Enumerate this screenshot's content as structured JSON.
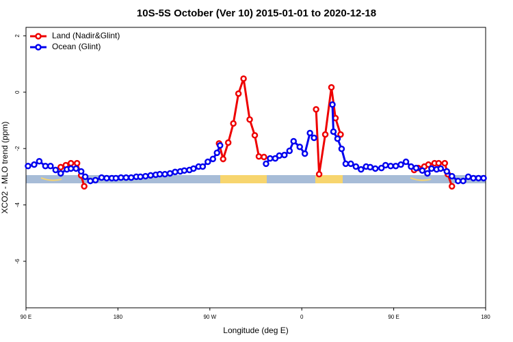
{
  "chart_data": {
    "type": "line",
    "title": "10S-5S October (Ver 10)   2015-01-01 to 2020-12-18",
    "x_label": "Longitude (deg E)",
    "y_label": "XCO2 - MLO trend (ppm)",
    "xlim": [
      90,
      540
    ],
    "ylim": [
      -7.65,
      2.3
    ],
    "xticks": [
      {
        "value": 90,
        "label": "90 E"
      },
      180,
      {
        "value": 270,
        "label": "90 W"
      },
      {
        "value": 360,
        "label": "0"
      },
      {
        "value": 450,
        "label": "90 E"
      },
      {
        "value": 540,
        "label": "180"
      }
    ],
    "yticks": [
      -6,
      -4,
      -2,
      0,
      2
    ],
    "legend": "top-left",
    "series": [
      {
        "name": "Land (Nadir&Glint)",
        "color": "#ee0000",
        "x": [
          124,
          129,
          134,
          140,
          144,
          147,
          200,
          279,
          283,
          288,
          293,
          298,
          303,
          309,
          314,
          318,
          323,
          340,
          374,
          377,
          383,
          389,
          393,
          398,
          450,
          470,
          474,
          480,
          484,
          490,
          494,
          500,
          503,
          507
        ],
        "values": [
          -2.66,
          -2.59,
          -2.52,
          -2.52,
          -2.95,
          -3.34,
          null,
          -1.82,
          -2.37,
          -1.79,
          -1.11,
          -0.05,
          0.48,
          -0.97,
          -1.53,
          -2.28,
          -2.3,
          null,
          -0.61,
          -2.91,
          -1.5,
          0.17,
          -0.92,
          -1.5,
          null,
          -2.76,
          -2.69,
          -2.64,
          -2.57,
          -2.52,
          -2.52,
          -2.52,
          -2.91,
          -3.34
        ]
      },
      {
        "name": "Ocean (Glint)",
        "color": "#0000ee",
        "x": [
          92,
          98,
          103,
          109,
          114,
          119,
          124,
          130,
          134,
          139,
          144,
          148,
          153,
          158,
          164,
          169,
          174,
          178,
          183,
          188,
          193,
          198,
          202,
          207,
          212,
          217,
          221,
          226,
          231,
          236,
          241,
          245,
          250,
          254,
          259,
          263,
          268,
          273,
          277,
          280,
          310,
          325,
          329,
          334,
          338,
          343,
          348,
          352,
          358,
          363,
          368,
          372,
          376,
          390,
          391,
          395,
          399,
          403,
          408,
          413,
          418,
          423,
          427,
          432,
          438,
          442,
          447,
          452,
          457,
          462,
          467,
          472,
          478,
          483,
          487,
          492,
          496,
          502,
          507,
          513,
          518,
          523,
          528,
          533,
          538
        ],
        "values": [
          -2.62,
          -2.57,
          -2.45,
          -2.62,
          -2.62,
          -2.76,
          -2.88,
          -2.74,
          -2.71,
          -2.71,
          -2.81,
          -3.0,
          -3.15,
          -3.12,
          -3.03,
          -3.05,
          -3.05,
          -3.05,
          -3.03,
          -3.03,
          -3.03,
          -3.0,
          -3.0,
          -2.98,
          -2.95,
          -2.93,
          -2.91,
          -2.91,
          -2.88,
          -2.83,
          -2.81,
          -2.78,
          -2.76,
          -2.71,
          -2.64,
          -2.64,
          -2.47,
          -2.37,
          -2.15,
          -1.89,
          null,
          -2.54,
          -2.35,
          -2.35,
          -2.25,
          -2.23,
          -2.08,
          -1.74,
          -1.94,
          -2.18,
          -1.45,
          -1.62,
          null,
          -0.44,
          -1.4,
          -1.65,
          -2.01,
          -2.54,
          -2.54,
          -2.64,
          -2.74,
          -2.64,
          -2.66,
          -2.71,
          -2.69,
          -2.59,
          -2.62,
          -2.62,
          -2.57,
          -2.47,
          -2.64,
          -2.69,
          -2.78,
          -2.88,
          -2.71,
          -2.74,
          -2.71,
          -2.81,
          -2.98,
          -3.15,
          -3.15,
          -3.0,
          -3.05,
          -3.05,
          -3.05
        ]
      }
    ]
  }
}
